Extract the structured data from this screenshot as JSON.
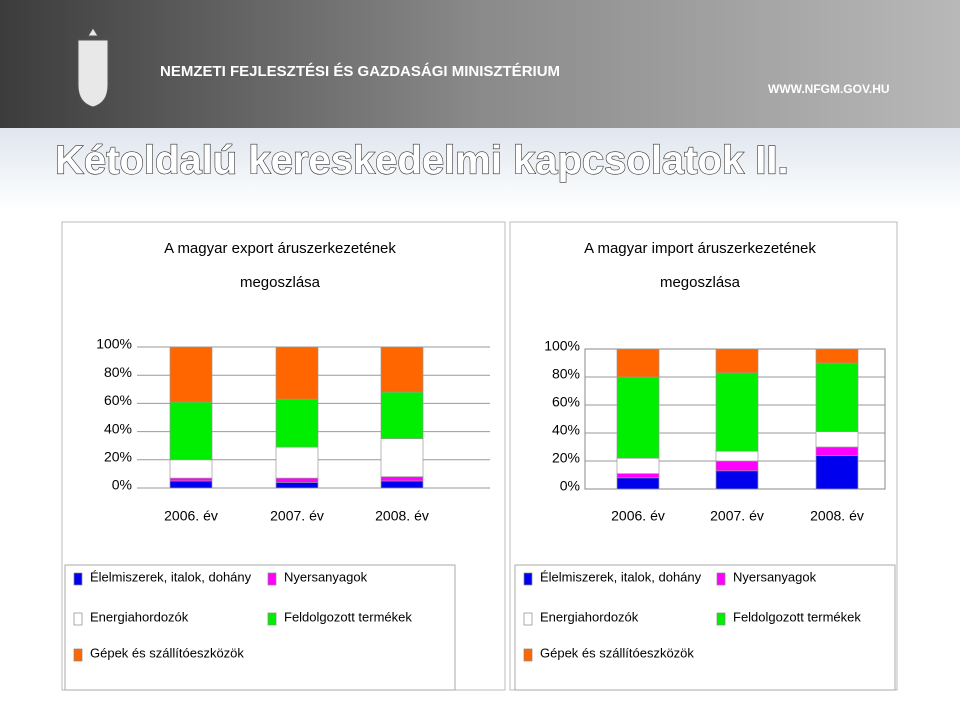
{
  "header": {
    "ministry": "NEMZETI FEJLESZTÉSI ÉS GAZDASÁGI MINISZTÉRIUM",
    "url": "WWW.NFGM.GOV.HU",
    "title": "Kétoldalú kereskedelmi kapcsolatok II."
  },
  "chart_data": [
    {
      "type": "stacked-bar",
      "title": "A magyar export áruszerkezetének megoszlása",
      "categories": [
        "2006. év",
        "2007. év",
        "2008. év"
      ],
      "series": [
        {
          "name": "Élelmiszerek, italok, dohány",
          "color": "#0000ee",
          "values": [
            5,
            4,
            5
          ]
        },
        {
          "name": "Nyersanyagok",
          "color": "#ff00ff",
          "values": [
            2,
            3,
            3
          ]
        },
        {
          "name": "Energiahordozók",
          "color": "#ffffff",
          "values": [
            13,
            22,
            27
          ]
        },
        {
          "name": "Feldolgozott termékek",
          "color": "#00ee00",
          "values": [
            41,
            34,
            33
          ]
        },
        {
          "name": "Gépek és szállítóeszközök",
          "color": "#ff6600",
          "values": [
            39,
            37,
            32
          ]
        }
      ],
      "ylim": [
        0,
        100
      ],
      "yticks": [
        {
          "value": 0,
          "label": "0%"
        },
        {
          "value": 20,
          "label": "20%"
        },
        {
          "value": 40,
          "label": "40%"
        },
        {
          "value": 60,
          "label": "60%"
        },
        {
          "value": 80,
          "label": "80%"
        },
        {
          "value": 100,
          "label": "100%"
        }
      ],
      "grid": true
    },
    {
      "type": "stacked-bar",
      "title": "A magyar import áruszerkezetének megoszlása",
      "categories": [
        "2006. év",
        "2007. év",
        "2008. év"
      ],
      "series": [
        {
          "name": "Élelmiszerek, italok, dohány",
          "color": "#0000ee",
          "values": [
            8,
            13,
            24
          ]
        },
        {
          "name": "Nyersanyagok",
          "color": "#ff00ff",
          "values": [
            3,
            7,
            6
          ]
        },
        {
          "name": "Energiahordozók",
          "color": "#ffffff",
          "values": [
            11,
            7,
            11
          ]
        },
        {
          "name": "Feldolgozott termékek",
          "color": "#00ee00",
          "values": [
            58,
            56,
            49
          ]
        },
        {
          "name": "Gépek és szállítóeszközök",
          "color": "#ff6600",
          "values": [
            20,
            17,
            10
          ]
        }
      ],
      "ylim": [
        0,
        100
      ],
      "yticks": [
        {
          "value": 0,
          "label": "0%"
        },
        {
          "value": 20,
          "label": "20%"
        },
        {
          "value": 40,
          "label": "40%"
        },
        {
          "value": 60,
          "label": "60%"
        },
        {
          "value": 80,
          "label": "80%"
        },
        {
          "value": 100,
          "label": "100%"
        }
      ],
      "grid": true
    }
  ]
}
